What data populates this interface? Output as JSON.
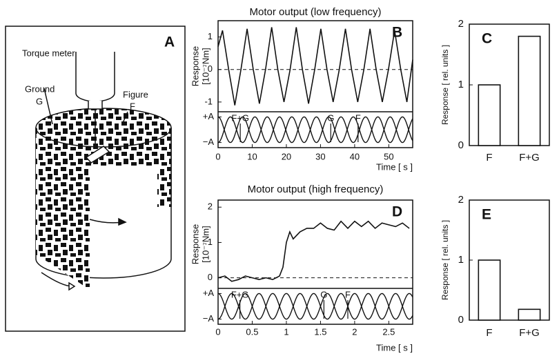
{
  "panel_a": {
    "letter": "A",
    "torque_meter": "Torque meter",
    "ground": "Ground",
    "ground_symbol": "G",
    "figure": "Figure",
    "figure_symbol": "F"
  },
  "chart_data": [
    {
      "type": "line",
      "panel": "B",
      "title": "Motor output (low frequency)",
      "ylabel": "Response",
      "ylabel_unit": "[10⁻⁷Nm]",
      "xlabel": "Time [ s ]",
      "x": [
        0,
        1.3,
        3.1,
        4.9,
        6.7,
        8.5,
        10.3,
        12.1,
        13.9,
        15.7,
        17.5,
        19.3,
        21.1,
        22.9,
        24.7,
        26.5,
        28.3,
        30.1,
        31.9,
        33.7,
        35.5,
        37.3,
        39.1,
        40.9,
        42.7,
        44.5,
        46.3,
        48.1,
        49.9,
        51.7,
        53.5,
        55.3,
        57
      ],
      "values": [
        0.7,
        1.2,
        0,
        -1.1,
        0,
        1.25,
        0,
        -1.05,
        0,
        1.3,
        0,
        -1.0,
        0,
        1.3,
        0,
        -1.05,
        0,
        1.25,
        0,
        -1.0,
        0,
        1.25,
        0,
        -1.0,
        0,
        1.25,
        0,
        -1.0,
        0,
        1.2,
        0,
        -1.0,
        0.3
      ],
      "color": "#111111",
      "xlim": [
        0,
        57
      ],
      "xticks": [
        0,
        10,
        20,
        30,
        40,
        50
      ],
      "ylim": [
        -1.3,
        1.5
      ],
      "yticks": [
        -1,
        0,
        1
      ],
      "hline": 0,
      "stimulus": {
        "ylim": [
          -1.4,
          1.4
        ],
        "yticks": [
          {
            "value": 1,
            "label": "+A"
          },
          {
            "value": -1,
            "label": "−A"
          }
        ],
        "period": 7.2,
        "phases": [
          0,
          3.6
        ],
        "annotations": [
          {
            "text": "F+G",
            "x": 6.5
          },
          {
            "text": "G",
            "x": 33
          },
          {
            "text": "F",
            "x": 41
          }
        ]
      }
    },
    {
      "type": "bar",
      "panel": "C",
      "ylabel": "Response [ rel. units ]",
      "categories": [
        "F",
        "F+G"
      ],
      "values": [
        1.0,
        1.8
      ],
      "color": "#ffffff",
      "ylim": [
        0,
        2
      ],
      "yticks": [
        0,
        1,
        2
      ]
    },
    {
      "type": "line",
      "panel": "D",
      "title": "Motor output (high frequency)",
      "ylabel": "Response",
      "ylabel_unit": "[10⁻⁷Nm]",
      "xlabel": "Time [ s ]",
      "x": [
        0,
        0.1,
        0.2,
        0.3,
        0.4,
        0.5,
        0.6,
        0.7,
        0.8,
        0.9,
        0.95,
        1.0,
        1.05,
        1.1,
        1.2,
        1.3,
        1.4,
        1.5,
        1.6,
        1.7,
        1.8,
        1.9,
        2.0,
        2.1,
        2.2,
        2.3,
        2.4,
        2.5,
        2.6,
        2.7,
        2.8
      ],
      "values": [
        0,
        0.05,
        -0.1,
        -0.05,
        0.05,
        0,
        -0.05,
        0,
        -0.05,
        0.05,
        0.3,
        1.0,
        1.3,
        1.1,
        1.3,
        1.4,
        1.4,
        1.55,
        1.4,
        1.35,
        1.6,
        1.4,
        1.6,
        1.45,
        1.6,
        1.4,
        1.55,
        1.5,
        1.45,
        1.55,
        1.4
      ],
      "color": "#111111",
      "xlim": [
        0,
        2.85
      ],
      "xticks": [
        0,
        0.5,
        1,
        1.5,
        2,
        2.5
      ],
      "ylim": [
        -0.3,
        2.2
      ],
      "yticks": [
        0,
        1,
        2
      ],
      "hline": 0,
      "stimulus": {
        "ylim": [
          -1.4,
          1.4
        ],
        "yticks": [
          {
            "value": 1,
            "label": "+A"
          },
          {
            "value": -1,
            "label": "−A"
          }
        ],
        "period": 0.4,
        "phases": [
          0,
          0.2
        ],
        "annotations": [
          {
            "text": "F+G",
            "x": 0.32
          },
          {
            "text": "G",
            "x": 1.55
          },
          {
            "text": "F",
            "x": 1.9
          }
        ]
      }
    },
    {
      "type": "bar",
      "panel": "E",
      "ylabel": "Response [ rel. units ]",
      "categories": [
        "F",
        "F+G"
      ],
      "values": [
        1.0,
        0.18
      ],
      "color": "#ffffff",
      "ylim": [
        0,
        2
      ],
      "yticks": [
        0,
        1,
        2
      ]
    }
  ]
}
